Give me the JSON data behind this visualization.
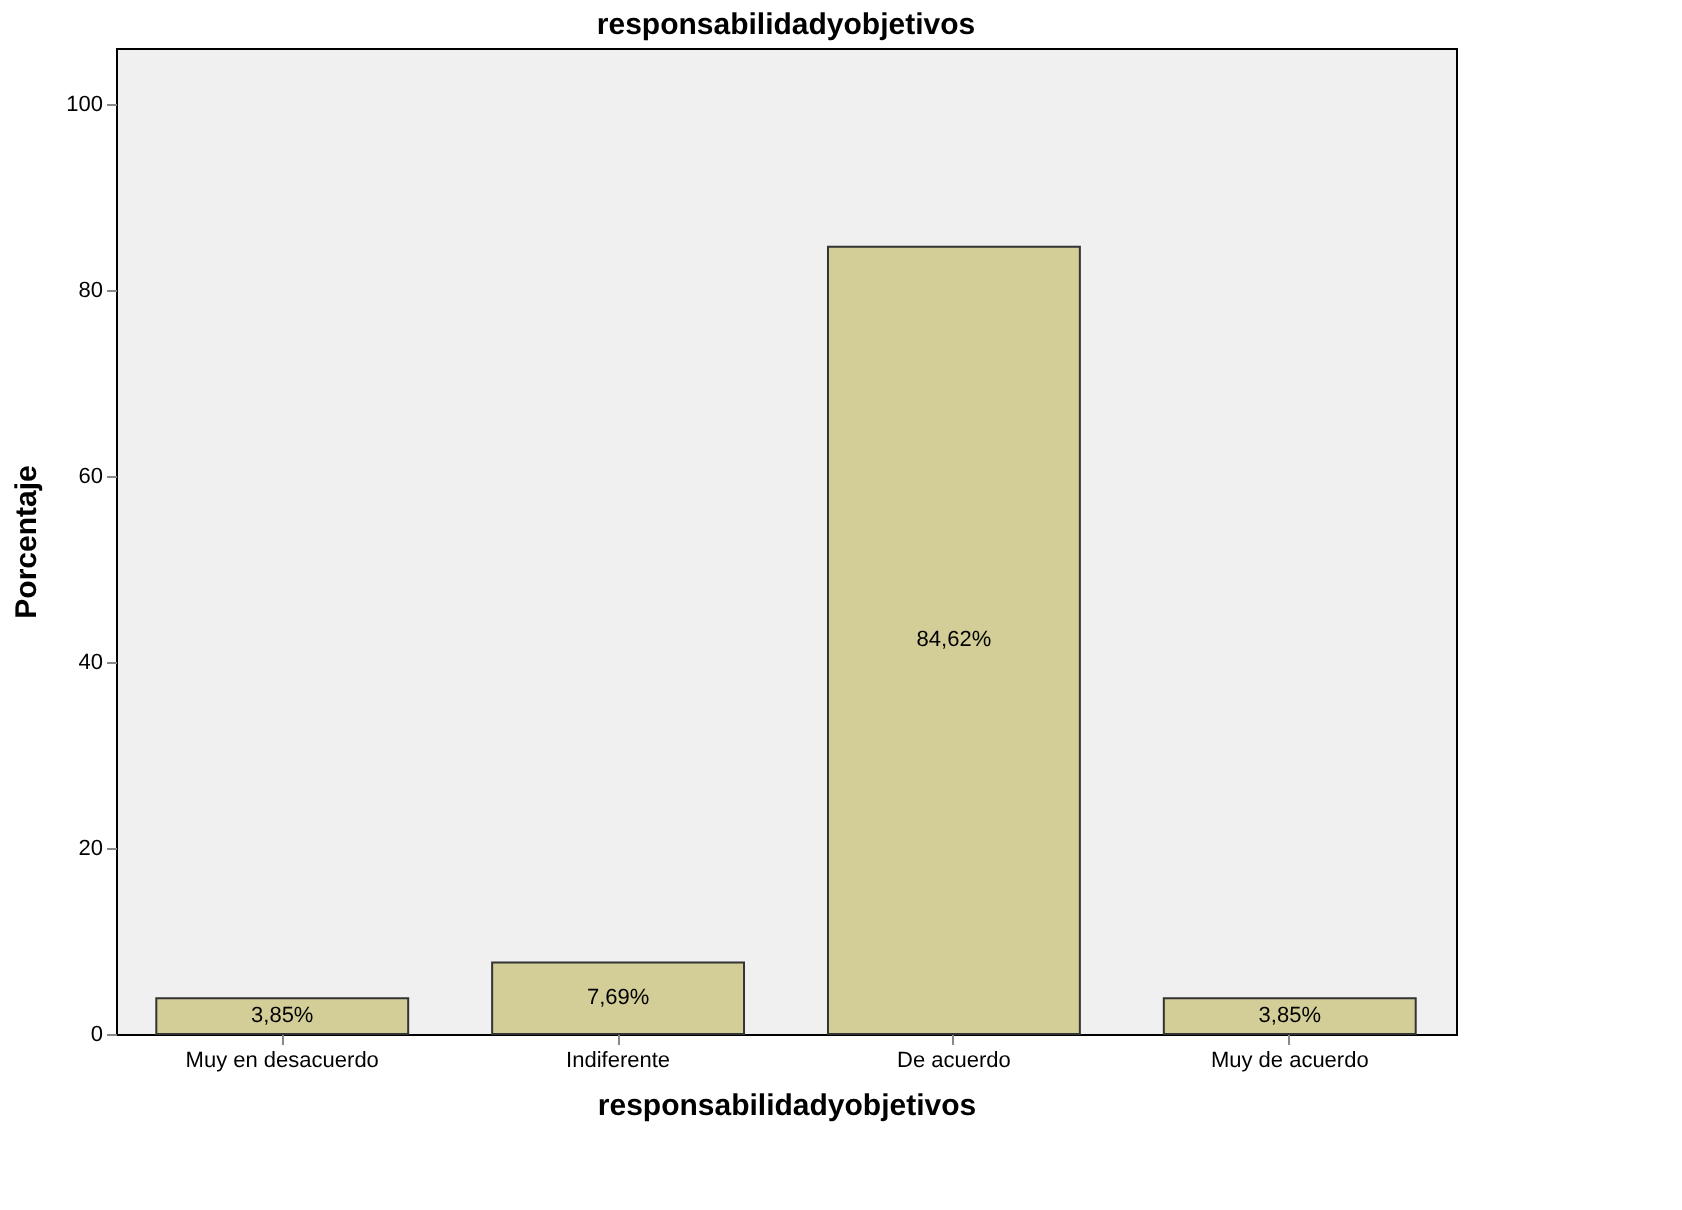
{
  "chart_data": {
    "type": "bar",
    "title": "responsabilidadyobjetivos",
    "xlabel": "responsabilidadyobjetivos",
    "ylabel": "Porcentaje",
    "categories": [
      "Muy en desacuerdo",
      "Indiferente",
      "De acuerdo",
      "Muy de acuerdo"
    ],
    "values": [
      3.85,
      7.69,
      84.62,
      3.85
    ],
    "value_labels": [
      "3,85%",
      "7,69%",
      "84,62%",
      "3,85%"
    ],
    "color": "#d3ce97",
    "ylim": [
      0,
      106
    ],
    "yticks": [
      0,
      20,
      40,
      60,
      80,
      100
    ],
    "grid": false
  }
}
